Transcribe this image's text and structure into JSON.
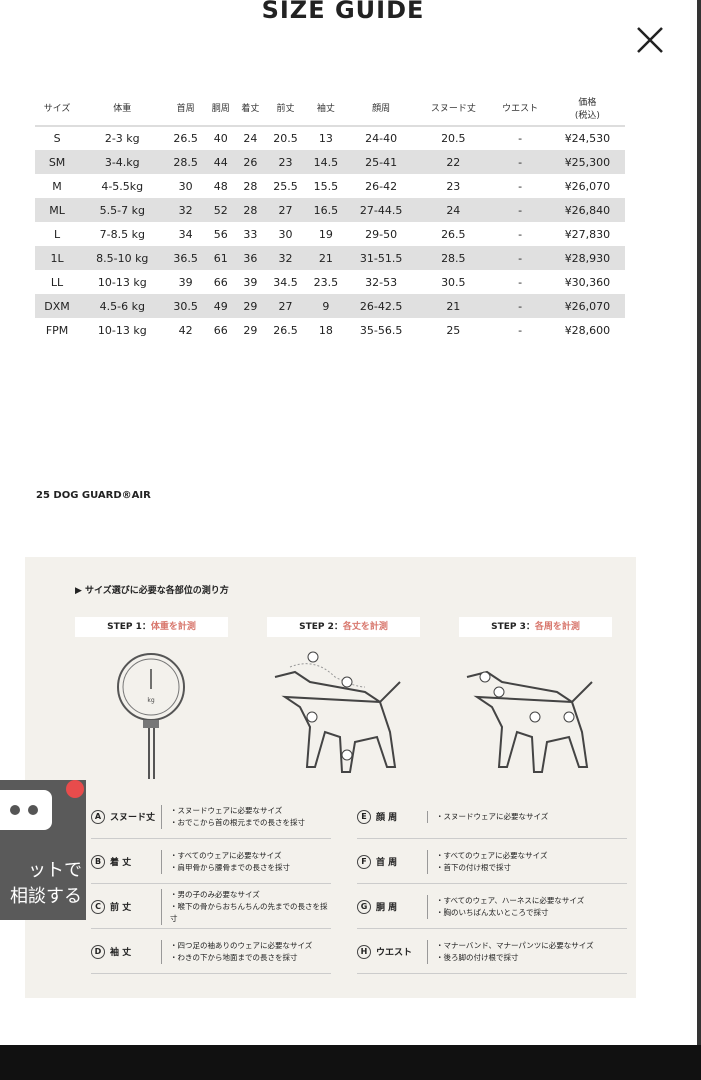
{
  "title": "SIZE GUIDE",
  "table": {
    "headers": [
      "サイズ",
      "体重",
      "首周",
      "胴周",
      "着丈",
      "前丈",
      "袖丈",
      "顔周",
      "スヌード丈",
      "ウエスト",
      "価格\n(税込)"
    ],
    "rows": [
      [
        "S",
        "2-3 kg",
        "26.5",
        "40",
        "24",
        "20.5",
        "13",
        "24-40",
        "20.5",
        "-",
        "¥24,530"
      ],
      [
        "SM",
        "3-4.kg",
        "28.5",
        "44",
        "26",
        "23",
        "14.5",
        "25-41",
        "22",
        "-",
        "¥25,300"
      ],
      [
        "M",
        "4-5.5kg",
        "30",
        "48",
        "28",
        "25.5",
        "15.5",
        "26-42",
        "23",
        "-",
        "¥26,070"
      ],
      [
        "ML",
        "5.5-7 kg",
        "32",
        "52",
        "28",
        "27",
        "16.5",
        "27-44.5",
        "24",
        "-",
        "¥26,840"
      ],
      [
        "L",
        "7-8.5 kg",
        "34",
        "56",
        "33",
        "30",
        "19",
        "29-50",
        "26.5",
        "-",
        "¥27,830"
      ],
      [
        "1L",
        "8.5-10 kg",
        "36.5",
        "61",
        "36",
        "32",
        "21",
        "31-51.5",
        "28.5",
        "-",
        "¥28,930"
      ],
      [
        "LL",
        "10-13 kg",
        "39",
        "66",
        "39",
        "34.5",
        "23.5",
        "32-53",
        "30.5",
        "-",
        "¥30,360"
      ],
      [
        "DXM",
        "4.5-6 kg",
        "30.5",
        "49",
        "29",
        "27",
        "9",
        "26-42.5",
        "21",
        "-",
        "¥26,070"
      ],
      [
        "FPM",
        "10-13 kg",
        "42",
        "66",
        "29",
        "26.5",
        "18",
        "35-56.5",
        "25",
        "-",
        "¥28,600"
      ]
    ]
  },
  "product": "25 DOG GUARD®AIR",
  "guide": {
    "heading": "▶ サイズ選びに必要な各部位の測り方",
    "steps": [
      {
        "label": "STEP 1：",
        "action": "体重を計測"
      },
      {
        "label": "STEP 2：",
        "action": "各丈を計測"
      },
      {
        "label": "STEP 3：",
        "action": "各周を計測"
      }
    ],
    "scale_unit": "kg",
    "left": [
      {
        "letter": "A",
        "name": "スヌード丈",
        "lines": [
          "・スヌードウェアに必要なサイズ",
          "・おでこから首の根元までの長さを採寸"
        ]
      },
      {
        "letter": "B",
        "name": "着 丈",
        "lines": [
          "・すべてのウェアに必要なサイズ",
          "・肩甲骨から腰骨までの長さを採寸"
        ]
      },
      {
        "letter": "C",
        "name": "前 丈",
        "lines": [
          "・男の子のみ必要なサイズ",
          "・喉下の骨からおちんちんの先までの長さを採寸"
        ]
      },
      {
        "letter": "D",
        "name": "袖 丈",
        "lines": [
          "・四つ足の袖ありのウェアに必要なサイズ",
          "・わきの下から地面までの長さを採寸"
        ]
      }
    ],
    "right": [
      {
        "letter": "E",
        "name": "顔 周",
        "lines": [
          "・スヌードウェアに必要なサイズ"
        ]
      },
      {
        "letter": "F",
        "name": "首 周",
        "lines": [
          "・すべてのウェアに必要なサイズ",
          "・首下の付け根で採寸"
        ]
      },
      {
        "letter": "G",
        "name": "胴 周",
        "lines": [
          "・すべてのウェア、ハーネスに必要なサイズ",
          "・胸のいちばん太いところで採寸"
        ]
      },
      {
        "letter": "H",
        "name": "ウエスト",
        "lines": [
          "・マナーバンド、マナーパンツに必要なサイズ",
          "・後ろ脚の付け根で採寸"
        ]
      }
    ]
  },
  "chat": {
    "text_line1": "ットで",
    "text_line2": "相談する"
  },
  "colors": {
    "accent": "#d8776d",
    "panel": "#f3f1ec",
    "stripe": "#e0e0e0",
    "badge": "#e84c4c"
  }
}
